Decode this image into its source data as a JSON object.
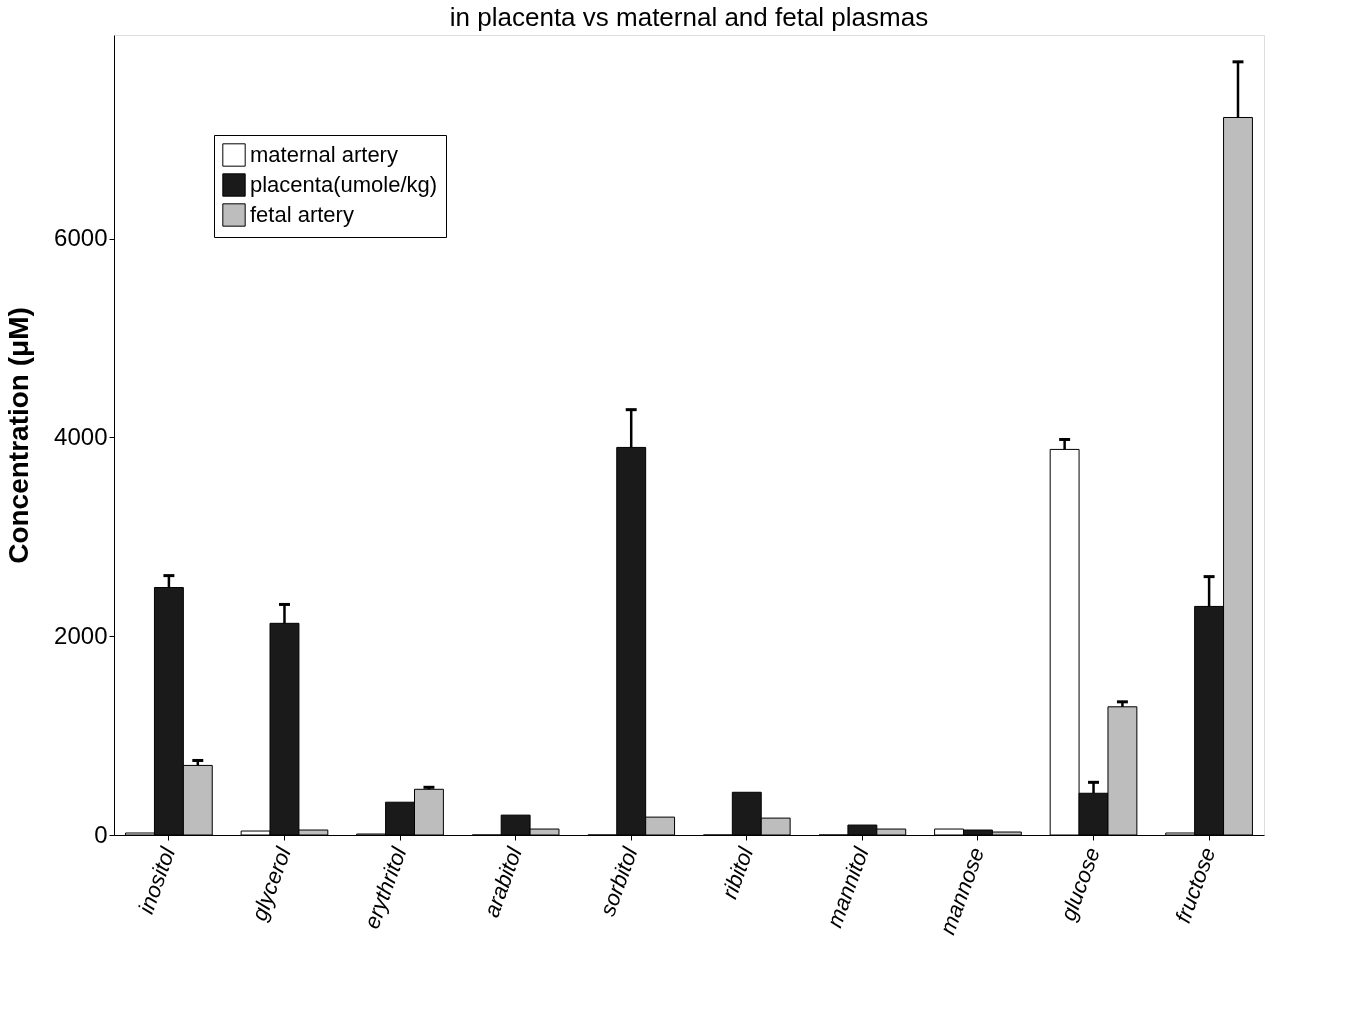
{
  "chart_data": {
    "type": "bar",
    "title": "in placenta vs maternal and fetal plasmas",
    "ylabel": "Concentration (μM)",
    "categories": [
      "inositol",
      "glycerol",
      "erythritol",
      "arabitol",
      "sorbitol",
      "ribitol",
      "mannitol",
      "mannose",
      "glucose",
      "fructose"
    ],
    "series": [
      {
        "name": "maternal artery",
        "color": "#ffffff",
        "values": [
          20,
          40,
          10,
          0,
          0,
          0,
          0,
          60,
          3880,
          20
        ],
        "errors": [
          null,
          null,
          null,
          null,
          null,
          null,
          null,
          null,
          [
            3880,
            3980
          ],
          null
        ]
      },
      {
        "name": "placenta(umole/kg)",
        "color": "#1a1a1a",
        "values": [
          2490,
          2130,
          330,
          200,
          3900,
          430,
          100,
          50,
          420,
          2300
        ],
        "errors": [
          [
            2490,
            2610
          ],
          [
            2130,
            2320
          ],
          null,
          null,
          [
            3900,
            4280
          ],
          null,
          null,
          null,
          [
            420,
            530
          ],
          [
            2300,
            2600
          ]
        ]
      },
      {
        "name": "fetal artery",
        "color": "#bdbdbd",
        "values": [
          700,
          50,
          460,
          60,
          180,
          170,
          60,
          30,
          1290,
          7220
        ],
        "errors": [
          [
            700,
            750
          ],
          null,
          [
            460,
            480
          ],
          null,
          null,
          null,
          null,
          null,
          [
            1290,
            1340
          ],
          [
            7220,
            7780
          ]
        ]
      }
    ],
    "ylim": [
      0,
      8050
    ],
    "yticks": [
      0,
      2000,
      4000,
      6000
    ],
    "grid": false,
    "legend": "top left"
  }
}
